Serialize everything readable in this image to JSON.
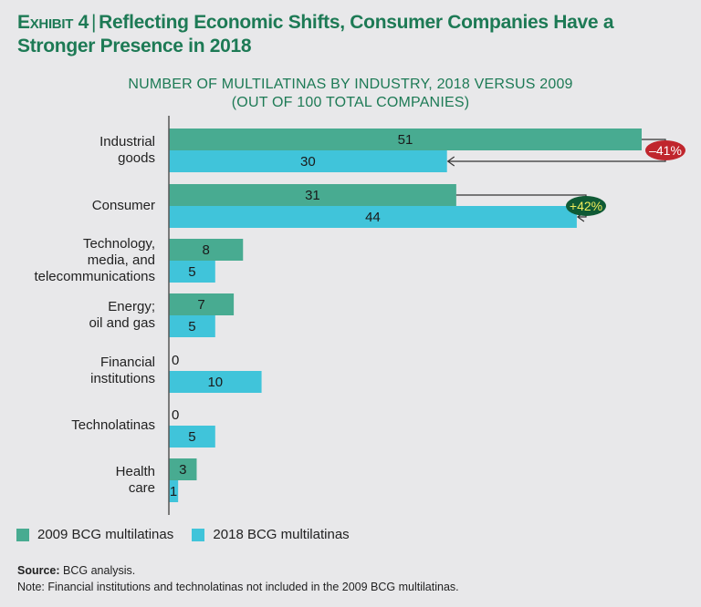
{
  "header": {
    "exhibit": "Exhibit 4",
    "separator": "|",
    "title": "Reflecting Economic Shifts, Consumer Companies Have a Stronger Presence in 2018"
  },
  "chart_data": {
    "type": "bar",
    "orientation": "horizontal",
    "title": "NUMBER OF MULTILATINAS BY INDUSTRY, 2018 VERSUS 2009",
    "subtitle": "(OUT OF 100 TOTAL COMPANIES)",
    "categories": [
      [
        "Industrial",
        "goods"
      ],
      [
        "Consumer"
      ],
      [
        "Technology,",
        "media, and",
        "telecommunications"
      ],
      [
        "Energy;",
        "oil and gas"
      ],
      [
        "Financial",
        "institutions"
      ],
      [
        "Technolatinas"
      ],
      [
        "Health",
        "care"
      ]
    ],
    "series": [
      {
        "name": "2009 BCG multilatinas",
        "color": "#48ab91",
        "values": [
          51,
          31,
          8,
          7,
          0,
          0,
          3
        ]
      },
      {
        "name": "2018 BCG multilatinas",
        "color": "#40c4da",
        "values": [
          30,
          44,
          5,
          5,
          10,
          5,
          1
        ]
      }
    ],
    "xlim": [
      0,
      51
    ],
    "grid": false,
    "legend_position": "bottom-left",
    "annotations": [
      {
        "category_index": 0,
        "text": "–41%",
        "color": "#c0262d",
        "text_color": "#ffffff"
      },
      {
        "category_index": 1,
        "text": "+42%",
        "color": "#0f5a35",
        "text_color": "#f2ee5c"
      }
    ]
  },
  "footer": {
    "source_label": "Source:",
    "source_text": "BCG analysis.",
    "note": "Note: Financial institutions and technolatinas not included in the 2009 BCG multilatinas."
  }
}
